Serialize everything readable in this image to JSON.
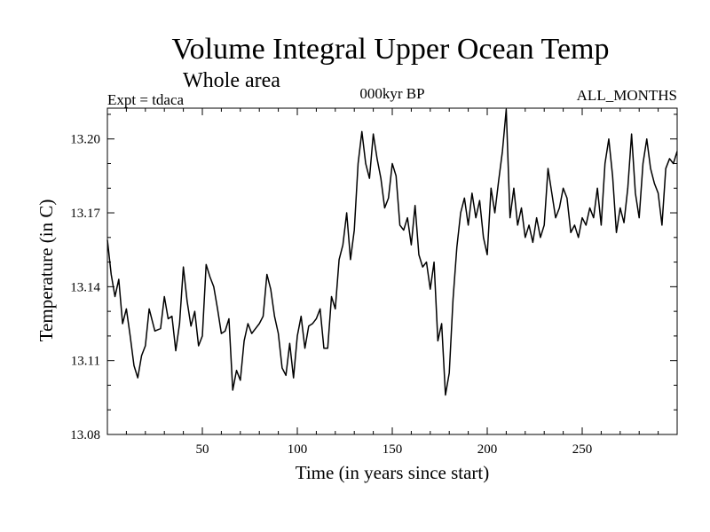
{
  "chart_data": {
    "type": "line",
    "title": "Volume Integral Upper Ocean Temp",
    "subtitle": "Whole area",
    "annotations": {
      "left": "Expt = tdaca",
      "center": "000kyr BP",
      "right": "ALL_MONTHS"
    },
    "xlabel": "Time (in years since start)",
    "ylabel": "Temperature (in C)",
    "xlim": [
      0,
      300
    ],
    "ylim": [
      13.08,
      13.2125
    ],
    "x_ticks": [
      50,
      100,
      150,
      200,
      250
    ],
    "x_tick_labels": [
      "50",
      "100",
      "150",
      "200",
      "250"
    ],
    "y_ticks": [
      13.08,
      13.11,
      13.14,
      13.17,
      13.2
    ],
    "y_tick_labels": [
      "13.08",
      "13.11",
      "13.14",
      "13.17",
      "13.20"
    ],
    "grid": false,
    "series": [
      {
        "name": "Temperature",
        "color": "#000000",
        "x": [
          0,
          2,
          4,
          6,
          8,
          10,
          12,
          14,
          16,
          18,
          20,
          22,
          25,
          28,
          30,
          32,
          34,
          36,
          38,
          40,
          42,
          44,
          46,
          48,
          50,
          52,
          54,
          56,
          58,
          60,
          62,
          64,
          66,
          68,
          70,
          72,
          74,
          76,
          78,
          80,
          82,
          84,
          86,
          88,
          90,
          92,
          94,
          96,
          98,
          100,
          102,
          104,
          106,
          108,
          110,
          112,
          114,
          116,
          118,
          120,
          122,
          124,
          126,
          128,
          130,
          132,
          134,
          136,
          138,
          140,
          142,
          144,
          146,
          148,
          150,
          152,
          154,
          156,
          158,
          160,
          162,
          164,
          166,
          168,
          170,
          172,
          174,
          176,
          178,
          180,
          182,
          184,
          186,
          188,
          190,
          192,
          194,
          196,
          198,
          200,
          202,
          204,
          206,
          208,
          210,
          212,
          214,
          216,
          218,
          220,
          222,
          224,
          226,
          228,
          230,
          232,
          234,
          236,
          238,
          240,
          242,
          244,
          246,
          248,
          250,
          252,
          254,
          256,
          258,
          260,
          262,
          264,
          266,
          268,
          270,
          272,
          274,
          276,
          278,
          280,
          282,
          284,
          286,
          288,
          290,
          292,
          294,
          296,
          298,
          300
        ],
        "values": [
          13.159,
          13.145,
          13.136,
          13.143,
          13.125,
          13.131,
          13.12,
          13.108,
          13.103,
          13.112,
          13.116,
          13.131,
          13.122,
          13.123,
          13.136,
          13.127,
          13.128,
          13.114,
          13.125,
          13.148,
          13.134,
          13.124,
          13.13,
          13.116,
          13.12,
          13.149,
          13.144,
          13.14,
          13.131,
          13.121,
          13.122,
          13.127,
          13.098,
          13.106,
          13.102,
          13.118,
          13.125,
          13.121,
          13.123,
          13.125,
          13.128,
          13.145,
          13.139,
          13.128,
          13.121,
          13.107,
          13.104,
          13.117,
          13.103,
          13.12,
          13.128,
          13.115,
          13.124,
          13.125,
          13.127,
          13.131,
          13.115,
          13.115,
          13.136,
          13.131,
          13.151,
          13.157,
          13.17,
          13.151,
          13.163,
          13.19,
          13.203,
          13.19,
          13.184,
          13.202,
          13.192,
          13.184,
          13.172,
          13.176,
          13.19,
          13.185,
          13.165,
          13.163,
          13.168,
          13.157,
          13.173,
          13.153,
          13.148,
          13.15,
          13.139,
          13.15,
          13.118,
          13.125,
          13.096,
          13.105,
          13.135,
          13.156,
          13.17,
          13.176,
          13.165,
          13.178,
          13.168,
          13.175,
          13.16,
          13.153,
          13.18,
          13.17,
          13.183,
          13.195,
          13.212,
          13.168,
          13.18,
          13.165,
          13.172,
          13.16,
          13.165,
          13.158,
          13.168,
          13.16,
          13.165,
          13.188,
          13.178,
          13.168,
          13.172,
          13.18,
          13.176,
          13.162,
          13.165,
          13.16,
          13.168,
          13.165,
          13.172,
          13.168,
          13.18,
          13.165,
          13.19,
          13.2,
          13.185,
          13.162,
          13.172,
          13.166,
          13.18,
          13.202,
          13.178,
          13.168,
          13.19,
          13.2,
          13.188,
          13.182,
          13.178,
          13.165,
          13.188,
          13.192,
          13.19,
          13.195
        ]
      }
    ]
  }
}
